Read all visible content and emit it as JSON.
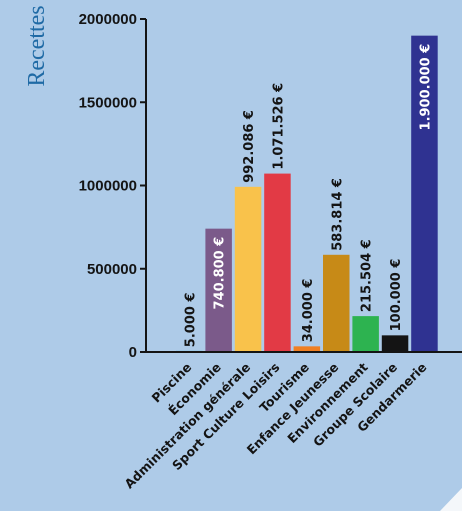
{
  "colors": {
    "background": "#aecbe8",
    "axis": "#141414",
    "ylabel": "#1f6aa5",
    "label_dark": "#141414",
    "label_light": "#ffffff",
    "corner_fold": "#f4f7fa"
  },
  "chart_data": {
    "type": "bar",
    "title": "",
    "xlabel": "",
    "ylabel": "Recettes",
    "ylim": [
      0,
      2000000
    ],
    "yticks": [
      0,
      500000,
      1000000,
      1500000,
      2000000
    ],
    "ytick_labels": [
      "0",
      "500000",
      "1000000",
      "1500000",
      "2000000"
    ],
    "grid": false,
    "legend": "none",
    "categories": [
      "Piscine",
      "Économie",
      "Administration générale",
      "Sport Culture Loisirs",
      "Tourisme",
      "Enfance Jeunesse",
      "Environnement",
      "Groupe Scolaire",
      "Gendarmerie"
    ],
    "values": [
      5000,
      740800,
      992086,
      1071526,
      34000,
      583814,
      215504,
      100000,
      1900000
    ],
    "value_labels": [
      "5.000 €",
      "740.800 €",
      "992.086 €",
      "1.071.526 €",
      "34.000 €",
      "583.814 €",
      "215.504 €",
      "100.000 €",
      "1.900.000 €"
    ],
    "bar_colors": [
      "#5ab9e3",
      "#7b5a8a",
      "#f9c24b",
      "#e23a45",
      "#f07f22",
      "#c78a17",
      "#2db350",
      "#141414",
      "#2f3291"
    ],
    "label_inside": [
      false,
      true,
      false,
      false,
      false,
      false,
      false,
      false,
      true
    ]
  }
}
